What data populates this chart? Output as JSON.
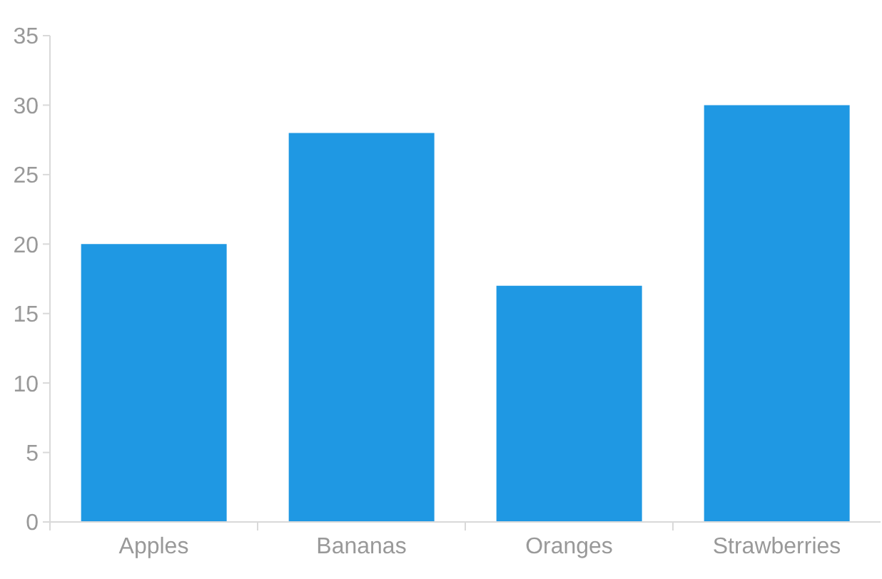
{
  "chart_data": {
    "type": "bar",
    "categories": [
      "Apples",
      "Bananas",
      "Oranges",
      "Strawberries"
    ],
    "values": [
      20,
      28,
      17,
      30
    ],
    "color": "#1f98e3",
    "ylim": [
      0,
      35
    ],
    "yticks": [
      0,
      5,
      10,
      15,
      20,
      25,
      30,
      35
    ]
  }
}
